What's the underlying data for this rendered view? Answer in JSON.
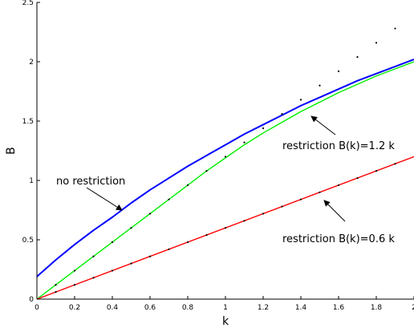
{
  "chart_data": {
    "type": "line",
    "title": "",
    "xlabel": "k",
    "ylabel": "B",
    "xlim": [
      0,
      2
    ],
    "ylim": [
      0,
      2.5
    ],
    "x_ticks": [
      0,
      0.2,
      0.4,
      0.6,
      0.8,
      1,
      1.2,
      1.4,
      1.6,
      1.8,
      2
    ],
    "x_tick_labels": [
      "0",
      "0.2",
      "0.4",
      "0.6",
      "0.8",
      "1",
      "1.2",
      "1.4",
      "1.6",
      "1.8",
      "2"
    ],
    "y_ticks": [
      0,
      0.5,
      1,
      1.5,
      2,
      2.5
    ],
    "y_tick_labels": [
      "0",
      "0.5",
      "1",
      "1.5",
      "2",
      "2.5"
    ],
    "grid": false,
    "legend": "none",
    "series": [
      {
        "color": "#0000ff",
        "style": "solid",
        "x": [
          0,
          0.1,
          0.2,
          0.3,
          0.4,
          0.5,
          0.6,
          0.7,
          0.8,
          0.9,
          1.0,
          1.1,
          1.2,
          1.3,
          1.4,
          1.5,
          1.6,
          1.7,
          1.8,
          1.9,
          2.0
        ],
        "y": [
          0.19,
          0.33,
          0.46,
          0.58,
          0.69,
          0.81,
          0.92,
          1.02,
          1.12,
          1.21,
          1.3,
          1.39,
          1.47,
          1.55,
          1.63,
          1.7,
          1.77,
          1.84,
          1.9,
          1.96,
          2.02
        ]
      },
      {
        "color": "#00ee00",
        "style": "solid",
        "x": [
          0,
          0.1,
          0.2,
          0.3,
          0.4,
          0.5,
          0.6,
          0.7,
          0.8,
          0.9,
          1.0,
          1.1,
          1.2,
          1.3,
          1.4,
          1.5,
          1.6,
          1.7,
          1.8,
          1.9,
          2.0
        ],
        "y": [
          0,
          0.12,
          0.24,
          0.36,
          0.48,
          0.6,
          0.72,
          0.84,
          0.96,
          1.08,
          1.19,
          1.3,
          1.4,
          1.49,
          1.58,
          1.66,
          1.74,
          1.81,
          1.88,
          1.94,
          2.0
        ]
      },
      {
        "color": "#ff0000",
        "style": "solid",
        "x": [
          0,
          2
        ],
        "y": [
          0,
          1.2
        ]
      },
      {
        "color": "#000000",
        "style": "markers",
        "x": [
          0.1,
          0.2,
          0.3,
          0.4,
          0.5,
          0.6,
          0.7,
          0.8,
          0.9,
          1.0,
          1.1,
          1.2,
          1.3,
          1.4,
          1.5,
          1.6,
          1.7,
          1.8,
          1.9
        ],
        "y": [
          0.12,
          0.24,
          0.36,
          0.48,
          0.6,
          0.72,
          0.84,
          0.96,
          1.08,
          1.2,
          1.32,
          1.44,
          1.56,
          1.68,
          1.8,
          1.92,
          2.04,
          2.16,
          2.28
        ]
      },
      {
        "color": "#000000",
        "style": "markers",
        "x": [
          0.1,
          0.2,
          0.3,
          0.4,
          0.5,
          0.6,
          0.7,
          0.8,
          0.9,
          1.0,
          1.1,
          1.2,
          1.3,
          1.4,
          1.5,
          1.6,
          1.7,
          1.8,
          1.9
        ],
        "y": [
          0.06,
          0.12,
          0.18,
          0.24,
          0.3,
          0.36,
          0.42,
          0.48,
          0.54,
          0.6,
          0.66,
          0.72,
          0.78,
          0.84,
          0.9,
          0.96,
          1.02,
          1.08,
          1.14
        ]
      }
    ],
    "annotations": [
      {
        "text": "no restriction",
        "arrow_to": [
          0.45,
          0.75
        ]
      },
      {
        "text": "restriction B(k)=1.2 k",
        "arrow_to": [
          1.43,
          1.55
        ]
      },
      {
        "text": "restriction B(k)=0.6 k",
        "arrow_to": [
          1.52,
          0.86
        ]
      }
    ]
  }
}
